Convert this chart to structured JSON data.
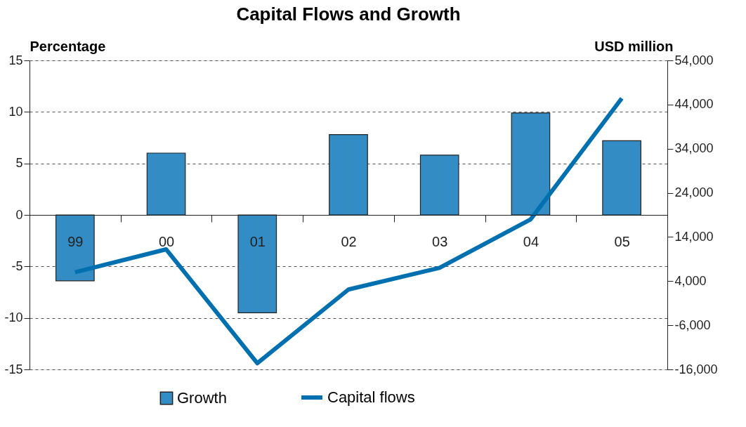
{
  "chart_data": {
    "type": "bar",
    "title": "Capital Flows and Growth",
    "ylabel": "Percentage",
    "y2label": "USD million",
    "categories": [
      "99",
      "00",
      "01",
      "02",
      "03",
      "04",
      "05"
    ],
    "series": [
      {
        "name": "Growth",
        "color": "#338dc4",
        "values": [
          -6.4,
          6.0,
          -9.5,
          7.8,
          5.8,
          9.9,
          7.2
        ]
      },
      {
        "name": "Capital flows",
        "type": "line",
        "axis": "y2",
        "color": "#0070b0",
        "values": [
          6000,
          11200,
          -14600,
          2100,
          7000,
          18000,
          45400
        ]
      }
    ],
    "ylim": [
      -15,
      15
    ],
    "yticks": [
      -15,
      -10,
      -5,
      0,
      5,
      10,
      15
    ],
    "y2lim": [
      -16000,
      54000
    ],
    "y2ticks": [
      {
        "value": -16000,
        "label": "-16,000"
      },
      {
        "value": -6000,
        "label": "-6,000"
      },
      {
        "value": 4000,
        "label": "4,000"
      },
      {
        "value": 14000,
        "label": "14,000"
      },
      {
        "value": 24000,
        "label": "24,000"
      },
      {
        "value": 34000,
        "label": "34,000"
      },
      {
        "value": 44000,
        "label": "44,000"
      },
      {
        "value": 54000,
        "label": "54,000"
      }
    ],
    "grid": "y",
    "legend": "bottom"
  }
}
